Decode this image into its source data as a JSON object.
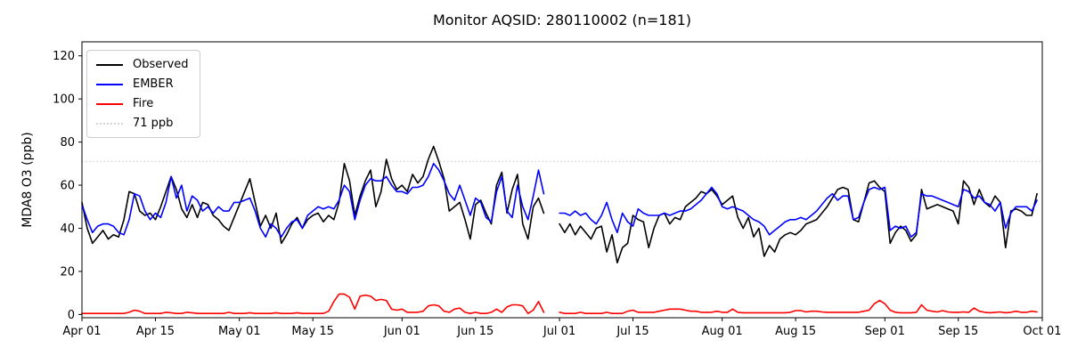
{
  "title": "Monitor AQSID: 280110002 (n=181)",
  "axes": {
    "ylabel": "MDA8 O3 (ppb)",
    "y_ticks": [
      0,
      20,
      40,
      60,
      80,
      100,
      120
    ],
    "x_tick_labels": [
      "Apr 01",
      "Apr 15",
      "May 01",
      "May 15",
      "Jun 01",
      "Jun 15",
      "Jul 01",
      "Jul 15",
      "Aug 01",
      "Aug 15",
      "Sep 01",
      "Sep 15",
      "Oct 01"
    ]
  },
  "legend": {
    "items": [
      {
        "label": "Observed",
        "color": "#000000",
        "dash": "solid"
      },
      {
        "label": "EMBER",
        "color": "#0000ff",
        "dash": "solid"
      },
      {
        "label": "Fire",
        "color": "#ff0000",
        "dash": "solid"
      },
      {
        "label": "71 ppb",
        "color": "#d3d3d3",
        "dash": "dotted"
      }
    ]
  },
  "chart_data": {
    "type": "line",
    "title": "Monitor AQSID: 280110002 (n=181)",
    "xlabel": "",
    "ylabel": "MDA8 O3 (ppb)",
    "n": 181,
    "x_start_date": "Apr 01",
    "x_end_date": "Oct 01",
    "x_unit": "day",
    "xlim_days": [
      0,
      183
    ],
    "ylim": [
      -1.5,
      126.5
    ],
    "y_ticks": [
      0,
      20,
      40,
      60,
      80,
      100,
      120
    ],
    "x_tick_labels": [
      "Apr 01",
      "Apr 15",
      "May 01",
      "May 15",
      "Jun 01",
      "Jun 15",
      "Jul 01",
      "Jul 15",
      "Aug 01",
      "Aug 15",
      "Sep 01",
      "Sep 15",
      "Oct 01"
    ],
    "x_tick_days": [
      0,
      14,
      30,
      44,
      61,
      75,
      91,
      105,
      122,
      136,
      153,
      167,
      183
    ],
    "grid": false,
    "legend_position": "upper left",
    "threshold": {
      "label": "71 ppb",
      "value": 71,
      "color": "#d3d3d3",
      "style": "dotted"
    },
    "gap_note": "no data Jun 29 - Jun 30",
    "series": [
      {
        "name": "Observed",
        "color": "#000000",
        "style": "solid",
        "values": [
          52,
          40,
          33,
          36,
          39,
          35,
          37,
          36,
          44,
          57,
          56,
          48,
          46,
          47,
          44,
          50,
          57,
          64,
          58,
          49,
          45,
          51,
          45,
          52,
          51,
          46,
          44,
          41,
          39,
          45,
          51,
          57,
          63,
          52,
          41,
          46,
          40,
          47,
          33,
          37,
          42,
          45,
          40,
          44,
          46,
          47,
          43,
          46,
          44,
          52,
          70,
          62,
          46,
          55,
          62,
          67,
          50,
          57,
          72,
          63,
          58,
          60,
          57,
          65,
          61,
          64,
          72,
          78,
          71,
          63,
          48,
          50,
          52,
          44,
          35,
          51,
          53,
          47,
          42,
          60,
          66,
          47,
          58,
          65,
          42,
          35,
          50,
          54,
          47,
          null,
          null,
          42,
          38,
          42,
          37,
          41,
          38,
          35,
          40,
          41,
          29,
          37,
          24,
          31,
          33,
          46,
          44,
          43,
          31,
          40,
          46,
          47,
          42,
          45,
          44,
          50,
          52,
          54,
          57,
          56,
          58,
          55,
          51,
          53,
          55,
          45,
          40,
          45,
          36,
          40,
          27,
          32,
          29,
          35,
          37,
          38,
          37,
          39,
          42,
          43,
          44,
          47,
          50,
          54,
          58,
          59,
          58,
          44,
          43,
          52,
          61,
          62,
          59,
          57,
          33,
          38,
          41,
          39,
          34,
          37,
          58,
          49,
          50,
          51,
          50,
          49,
          48,
          42,
          62,
          59,
          51,
          58,
          52,
          50,
          55,
          52,
          31,
          48,
          49,
          48,
          46,
          46,
          56
        ]
      },
      {
        "name": "EMBER",
        "color": "#0000ff",
        "style": "solid",
        "values": [
          51,
          44,
          38,
          41,
          42,
          42,
          41,
          38,
          37,
          44,
          56,
          55,
          48,
          44,
          47,
          45,
          52,
          64,
          54,
          60,
          48,
          55,
          53,
          48,
          50,
          47,
          50,
          48,
          48,
          52,
          52,
          53,
          54,
          48,
          40,
          36,
          42,
          40,
          36,
          40,
          43,
          44,
          40,
          46,
          48,
          50,
          49,
          50,
          49,
          53,
          60,
          57,
          44,
          53,
          60,
          63,
          62,
          62,
          64,
          60,
          57,
          57,
          56,
          59,
          59,
          60,
          64,
          70,
          67,
          62,
          56,
          53,
          60,
          53,
          46,
          54,
          52,
          45,
          43,
          57,
          64,
          48,
          45,
          60,
          50,
          44,
          55,
          67,
          56,
          null,
          null,
          47,
          47,
          46,
          48,
          46,
          47,
          44,
          42,
          46,
          52,
          44,
          38,
          47,
          43,
          41,
          49,
          47,
          46,
          46,
          46,
          47,
          46,
          47,
          48,
          48,
          49,
          51,
          53,
          56,
          59,
          56,
          50,
          49,
          50,
          49,
          48,
          46,
          44,
          43,
          41,
          37,
          39,
          41,
          43,
          44,
          44,
          45,
          44,
          46,
          48,
          51,
          54,
          56,
          53,
          55,
          55,
          44,
          45,
          52,
          58,
          59,
          58,
          59,
          39,
          41,
          40,
          41,
          36,
          38,
          56,
          55,
          55,
          54,
          53,
          52,
          51,
          50,
          58,
          57,
          54,
          55,
          52,
          51,
          48,
          52,
          40,
          47,
          50,
          50,
          50,
          48,
          53
        ]
      },
      {
        "name": "Fire",
        "color": "#ff0000",
        "style": "solid",
        "values": [
          0.5,
          0.5,
          0.5,
          0.5,
          0.5,
          0.5,
          0.5,
          0.5,
          0.5,
          1,
          2,
          1.5,
          0.5,
          0.5,
          0.5,
          0.5,
          1,
          0.8,
          0.5,
          0.5,
          1,
          0.8,
          0.5,
          0.5,
          0.5,
          0.5,
          0.5,
          0.5,
          1,
          0.5,
          0.5,
          0.5,
          0.8,
          0.5,
          0.5,
          0.5,
          0.5,
          0.8,
          0.5,
          0.5,
          0.5,
          0.8,
          0.5,
          0.5,
          0.5,
          0.5,
          0.5,
          1.5,
          6,
          9.5,
          9.5,
          8,
          2.5,
          8.5,
          9,
          8.5,
          6.5,
          7,
          6.5,
          2.5,
          2,
          2.5,
          1,
          1,
          1,
          1.5,
          4,
          4.5,
          4,
          1.5,
          1,
          2.5,
          3,
          1,
          0.5,
          1,
          0.5,
          0.5,
          1,
          2.5,
          1,
          3.5,
          4.5,
          4.5,
          4,
          0.5,
          2,
          6,
          1,
          null,
          null,
          1,
          0.5,
          0.5,
          0.5,
          1,
          0.5,
          0.5,
          0.5,
          0.5,
          1,
          0.5,
          0.5,
          0.5,
          1.5,
          2,
          1,
          1,
          1,
          1,
          1.5,
          2,
          2.5,
          2.5,
          2.5,
          2,
          1.5,
          1.5,
          1,
          1,
          1,
          1.5,
          1,
          1,
          2.5,
          1,
          0.8,
          0.8,
          0.8,
          0.8,
          0.8,
          0.8,
          0.8,
          0.8,
          0.8,
          1,
          1.8,
          1.8,
          1.2,
          1.5,
          1.5,
          1.2,
          1,
          1,
          1,
          1,
          1,
          1,
          1,
          1.5,
          2,
          5,
          6.5,
          5,
          2,
          1,
          0.8,
          0.8,
          0.8,
          1,
          4.5,
          2,
          1.5,
          1.2,
          1.8,
          1.2,
          1,
          1,
          1.2,
          1,
          3,
          1.5,
          1,
          0.8,
          1,
          1.2,
          0.8,
          1,
          1.5,
          1,
          1,
          1.5,
          1.2
        ]
      }
    ]
  }
}
